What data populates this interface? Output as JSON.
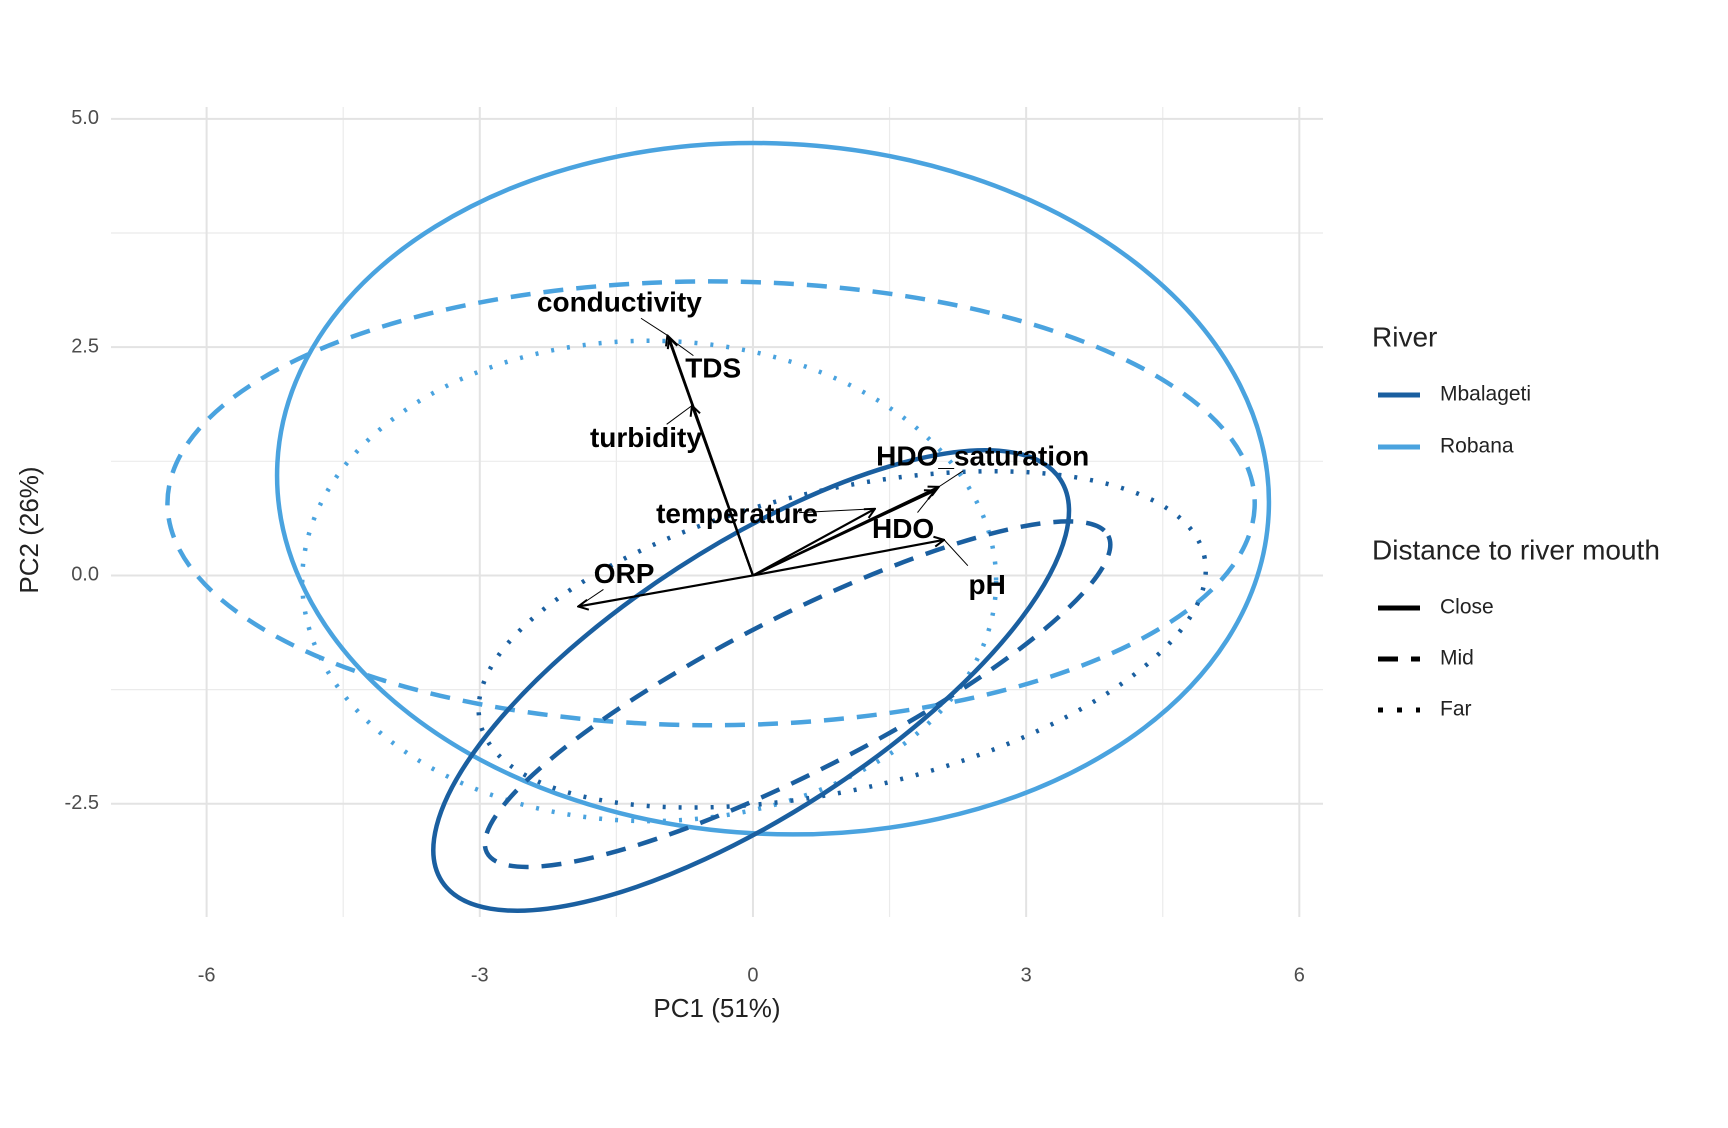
{
  "chart_data": {
    "type": "biplot",
    "x_label": "PC1 (51%)",
    "y_label": "PC2 (26%)",
    "xlim": [
      -7.05,
      6.26
    ],
    "ylim": [
      -3.74,
      5.13
    ],
    "xticks": [
      -6,
      -3,
      0,
      3,
      6
    ],
    "yticks": [
      {
        "value": -2.5,
        "label": "-2.5"
      },
      {
        "value": 0,
        "label": "0.0"
      },
      {
        "value": 2.5,
        "label": "2.5"
      },
      {
        "value": 5,
        "label": "5.0"
      }
    ],
    "grid": true,
    "minor_grid": true,
    "river_legend": {
      "title": "River",
      "items": [
        "Mbalageti",
        "Robana"
      ],
      "colors": [
        "#1a5fa0",
        "#4aa3df"
      ]
    },
    "distance_legend": {
      "title": "Distance to river mouth",
      "items": [
        "Close",
        "Mid",
        "Far"
      ],
      "dash": [
        "solid",
        "dashed",
        "dotted"
      ]
    },
    "ellipses": [
      {
        "river": "Robana",
        "distance": "Close",
        "cx": 0.22,
        "cy": 0.95,
        "rx": 5.45,
        "ry": 3.78,
        "angle": -3
      },
      {
        "river": "Robana",
        "distance": "Mid",
        "cx": -0.46,
        "cy": 0.79,
        "rx": 5.97,
        "ry": 2.43,
        "angle": 0
      },
      {
        "river": "Robana",
        "distance": "Far",
        "cx": -1.14,
        "cy": -0.06,
        "rx": 3.81,
        "ry": 2.63,
        "angle": 0
      },
      {
        "river": "Mbalageti",
        "distance": "Close",
        "cx": -0.02,
        "cy": -1.15,
        "rx": 4.05,
        "ry": 1.47,
        "angle": 33
      },
      {
        "river": "Mbalageti",
        "distance": "Mid",
        "cx": 0.49,
        "cy": -1.3,
        "rx": 3.83,
        "ry": 0.85,
        "angle": 27
      },
      {
        "river": "Mbalageti",
        "distance": "Far",
        "cx": 0.98,
        "cy": -0.7,
        "rx": 4.08,
        "ry": 1.64,
        "angle": 13
      }
    ],
    "loadings": [
      {
        "name": "conductivity",
        "x": -0.94,
        "y": 2.63
      },
      {
        "name": "TDS",
        "x": -0.92,
        "y": 2.6
      },
      {
        "name": "turbidity",
        "x": -0.67,
        "y": 1.86
      },
      {
        "name": "HDO_saturation",
        "x": 2.04,
        "y": 0.97
      },
      {
        "name": "temperature",
        "x": 1.34,
        "y": 0.73
      },
      {
        "name": "HDO",
        "x": 2.0,
        "y": 0.93
      },
      {
        "name": "pH",
        "x": 2.1,
        "y": 0.39
      },
      {
        "name": "ORP",
        "x": -1.92,
        "y": -0.34
      }
    ]
  }
}
